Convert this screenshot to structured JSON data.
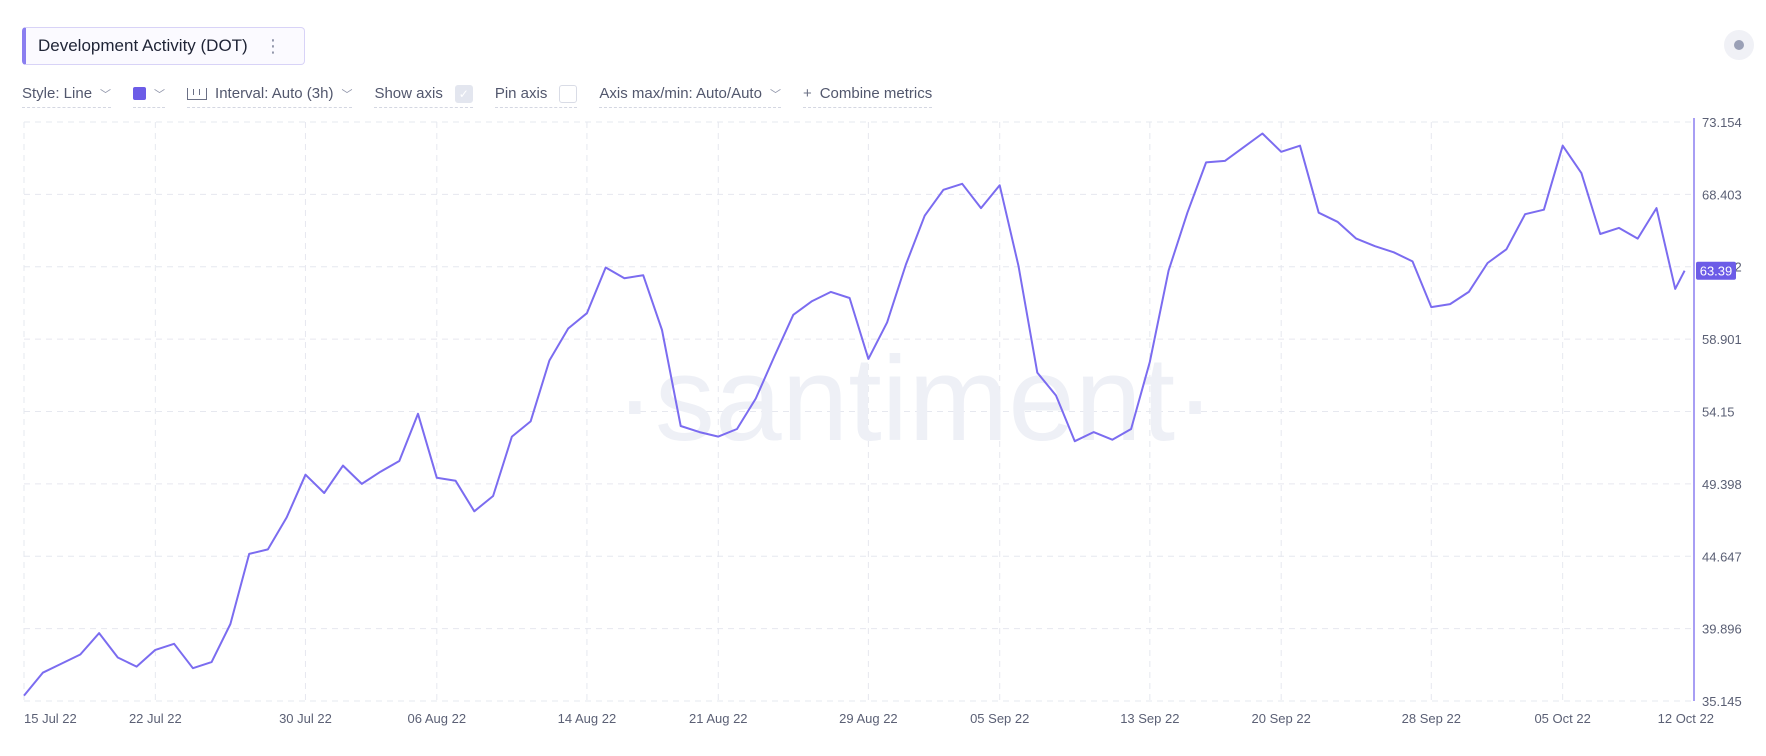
{
  "header": {
    "metric_title": "Development Activity (DOT)",
    "kebab": "⋮",
    "settings_icon": "circle-dot-icon"
  },
  "toolbar": {
    "style_label": "Style: Line",
    "color": "#6c5ce7",
    "interval_label": "Interval: Auto (3h)",
    "show_axis_label": "Show axis",
    "show_axis_checked": true,
    "pin_axis_label": "Pin axis",
    "pin_axis_checked": false,
    "axis_label": "Axis max/min: Auto/Auto",
    "combine_label": "Combine metrics",
    "combine_icon": "plus-icon",
    "chevron_icon": "chevron-down-icon"
  },
  "watermark": "·santiment·",
  "chart_data": {
    "type": "line",
    "series": [
      {
        "color": "#7b6cf0",
        "points": [
          [
            "2022-07-15",
            35.5
          ],
          [
            "2022-07-16",
            37.0
          ],
          [
            "2022-07-17",
            37.6
          ],
          [
            "2022-07-18",
            38.2
          ],
          [
            "2022-07-19",
            39.6
          ],
          [
            "2022-07-20",
            38.0
          ],
          [
            "2022-07-21",
            37.4
          ],
          [
            "2022-07-22",
            38.5
          ],
          [
            "2022-07-23",
            38.9
          ],
          [
            "2022-07-24",
            37.3
          ],
          [
            "2022-07-25",
            37.7
          ],
          [
            "2022-07-26",
            40.2
          ],
          [
            "2022-07-27",
            44.8
          ],
          [
            "2022-07-28",
            45.1
          ],
          [
            "2022-07-29",
            47.2
          ],
          [
            "2022-07-30",
            50.0
          ],
          [
            "2022-07-31",
            48.8
          ],
          [
            "2022-08-01",
            50.6
          ],
          [
            "2022-08-02",
            49.4
          ],
          [
            "2022-08-03",
            50.2
          ],
          [
            "2022-08-04",
            50.9
          ],
          [
            "2022-08-05",
            54.0
          ],
          [
            "2022-08-06",
            49.8
          ],
          [
            "2022-08-07",
            49.6
          ],
          [
            "2022-08-08",
            47.6
          ],
          [
            "2022-08-09",
            48.6
          ],
          [
            "2022-08-10",
            52.5
          ],
          [
            "2022-08-11",
            53.5
          ],
          [
            "2022-08-12",
            57.5
          ],
          [
            "2022-08-13",
            59.6
          ],
          [
            "2022-08-14",
            60.6
          ],
          [
            "2022-08-15",
            63.6
          ],
          [
            "2022-08-16",
            62.9
          ],
          [
            "2022-08-17",
            63.1
          ],
          [
            "2022-08-18",
            59.5
          ],
          [
            "2022-08-19",
            53.2
          ],
          [
            "2022-08-20",
            52.8
          ],
          [
            "2022-08-21",
            52.5
          ],
          [
            "2022-08-22",
            53.0
          ],
          [
            "2022-08-23",
            55.0
          ],
          [
            "2022-08-24",
            57.8
          ],
          [
            "2022-08-25",
            60.5
          ],
          [
            "2022-08-26",
            61.4
          ],
          [
            "2022-08-27",
            62.0
          ],
          [
            "2022-08-28",
            61.6
          ],
          [
            "2022-08-29",
            57.6
          ],
          [
            "2022-08-30",
            60.0
          ],
          [
            "2022-08-31",
            63.8
          ],
          [
            "2022-09-01",
            67.0
          ],
          [
            "2022-09-02",
            68.7
          ],
          [
            "2022-09-03",
            69.1
          ],
          [
            "2022-09-04",
            67.5
          ],
          [
            "2022-09-05",
            69.0
          ],
          [
            "2022-09-06",
            63.7
          ],
          [
            "2022-09-07",
            56.7
          ],
          [
            "2022-09-08",
            55.2
          ],
          [
            "2022-09-09",
            52.2
          ],
          [
            "2022-09-10",
            52.8
          ],
          [
            "2022-09-11",
            52.3
          ],
          [
            "2022-09-12",
            53.0
          ],
          [
            "2022-09-13",
            57.4
          ],
          [
            "2022-09-14",
            63.4
          ],
          [
            "2022-09-15",
            67.2
          ],
          [
            "2022-09-16",
            70.5
          ],
          [
            "2022-09-17",
            70.6
          ],
          [
            "2022-09-18",
            71.5
          ],
          [
            "2022-09-19",
            72.4
          ],
          [
            "2022-09-20",
            71.2
          ],
          [
            "2022-09-21",
            71.6
          ],
          [
            "2022-09-22",
            67.2
          ],
          [
            "2022-09-23",
            66.6
          ],
          [
            "2022-09-24",
            65.5
          ],
          [
            "2022-09-25",
            65.0
          ],
          [
            "2022-09-26",
            64.6
          ],
          [
            "2022-09-27",
            64.0
          ],
          [
            "2022-09-28",
            61.0
          ],
          [
            "2022-09-29",
            61.2
          ],
          [
            "2022-09-30",
            62.0
          ],
          [
            "2022-10-01",
            63.9
          ],
          [
            "2022-10-02",
            64.8
          ],
          [
            "2022-10-03",
            67.1
          ],
          [
            "2022-10-04",
            67.4
          ],
          [
            "2022-10-05",
            71.6
          ],
          [
            "2022-10-06",
            69.8
          ],
          [
            "2022-10-07",
            65.8
          ],
          [
            "2022-10-08",
            66.2
          ],
          [
            "2022-10-09",
            65.5
          ],
          [
            "2022-10-10",
            67.5
          ],
          [
            "2022-10-11",
            62.2
          ],
          [
            "2022-10-11T12:00",
            63.39
          ]
        ]
      }
    ],
    "last_value_label": "63.39",
    "y_ticks": [
      "73.154",
      "68.403",
      "63.652",
      "58.901",
      "54.15",
      "49.398",
      "44.647",
      "39.896",
      "35.145"
    ],
    "x_ticks": [
      {
        "date": "2022-07-15",
        "label": "15 Jul 22"
      },
      {
        "date": "2022-07-22",
        "label": "22 Jul 22"
      },
      {
        "date": "2022-07-30",
        "label": "30 Jul 22"
      },
      {
        "date": "2022-08-06",
        "label": "06 Aug 22"
      },
      {
        "date": "2022-08-14",
        "label": "14 Aug 22"
      },
      {
        "date": "2022-08-21",
        "label": "21 Aug 22"
      },
      {
        "date": "2022-08-29",
        "label": "29 Aug 22"
      },
      {
        "date": "2022-09-05",
        "label": "05 Sep 22"
      },
      {
        "date": "2022-09-13",
        "label": "13 Sep 22"
      },
      {
        "date": "2022-09-20",
        "label": "20 Sep 22"
      },
      {
        "date": "2022-09-28",
        "label": "28 Sep 22"
      },
      {
        "date": "2022-10-05",
        "label": "05 Oct 22"
      },
      {
        "date": "2022-10-12",
        "label": "12 Oct 22"
      }
    ],
    "x_range": [
      "2022-07-15",
      "2022-10-12"
    ],
    "ylim": [
      35.145,
      73.154
    ],
    "grid": true,
    "legend": "none"
  }
}
